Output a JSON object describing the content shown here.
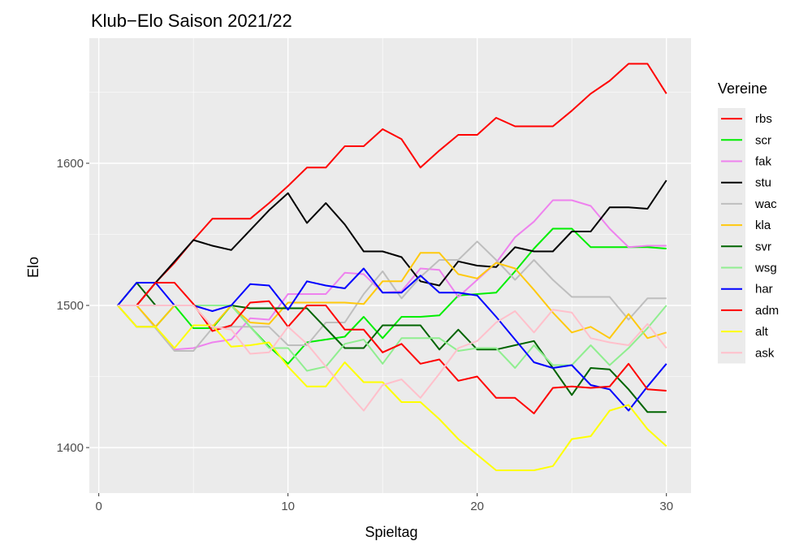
{
  "chart_data": {
    "type": "line",
    "title": "Klub−Elo Saison 2021/22",
    "xlabel": "Spieltag",
    "ylabel": "Elo",
    "xlim": [
      -0.5,
      31.3
    ],
    "ylim": [
      1368,
      1688
    ],
    "x_ticks": [
      0,
      10,
      20,
      30
    ],
    "x_tick_labels": [
      "0",
      "10",
      "20",
      "30"
    ],
    "y_ticks": [
      1400,
      1500,
      1600
    ],
    "y_tick_labels": [
      "1400",
      "1500",
      "1600"
    ],
    "grid": true,
    "legend_title": "Vereine",
    "legend_position": "right",
    "x": [
      1,
      2,
      3,
      4,
      5,
      6,
      7,
      8,
      9,
      10,
      11,
      12,
      13,
      14,
      15,
      16,
      17,
      18,
      19,
      20,
      21,
      22,
      23,
      24,
      25,
      26,
      27,
      28,
      29,
      30
    ],
    "series": [
      {
        "name": "rbs",
        "color": "#ff0000",
        "values": [
          1500,
          1500,
          1516,
          1530,
          1546,
          1561,
          1561,
          1561,
          1572,
          1584,
          1597,
          1597,
          1612,
          1612,
          1624,
          1617,
          1597,
          1609,
          1620,
          1620,
          1632,
          1626,
          1626,
          1626,
          1637,
          1649,
          1658,
          1670,
          1670,
          1649
        ]
      },
      {
        "name": "scr",
        "color": "#00ee00",
        "values": [
          1500,
          1485,
          1485,
          1500,
          1484,
          1484,
          1500,
          1485,
          1471,
          1459,
          1474,
          1476,
          1478,
          1492,
          1477,
          1492,
          1492,
          1493,
          1507,
          1508,
          1509,
          1524,
          1540,
          1554,
          1554,
          1541,
          1541,
          1541,
          1541,
          1540
        ]
      },
      {
        "name": "fak",
        "color": "#ee82ee",
        "values": [
          1500,
          1485,
          1485,
          1469,
          1470,
          1474,
          1476,
          1491,
          1490,
          1508,
          1508,
          1508,
          1523,
          1522,
          1509,
          1510,
          1526,
          1525,
          1506,
          1518,
          1530,
          1548,
          1559,
          1574,
          1574,
          1570,
          1554,
          1541,
          1542,
          1542
        ]
      },
      {
        "name": "stu",
        "color": "#000000",
        "values": [
          1500,
          1500,
          1516,
          1531,
          1546,
          1542,
          1539,
          1553,
          1567,
          1579,
          1558,
          1572,
          1557,
          1538,
          1538,
          1534,
          1517,
          1514,
          1531,
          1528,
          1527,
          1541,
          1538,
          1538,
          1552,
          1552,
          1569,
          1569,
          1568,
          1588
        ]
      },
      {
        "name": "wac",
        "color": "#bebebe",
        "values": [
          1500,
          1500,
          1484,
          1468,
          1468,
          1484,
          1485,
          1485,
          1485,
          1472,
          1472,
          1488,
          1488,
          1508,
          1524,
          1505,
          1520,
          1532,
          1532,
          1545,
          1532,
          1518,
          1532,
          1518,
          1506,
          1506,
          1506,
          1490,
          1505,
          1505
        ]
      },
      {
        "name": "kla",
        "color": "#ffc90e",
        "values": [
          1500,
          1500,
          1485,
          1500,
          1500,
          1485,
          1500,
          1488,
          1487,
          1502,
          1502,
          1502,
          1502,
          1501,
          1517,
          1517,
          1537,
          1537,
          1522,
          1519,
          1530,
          1526,
          1511,
          1495,
          1481,
          1485,
          1477,
          1494,
          1477,
          1481
        ]
      },
      {
        "name": "svr",
        "color": "#006400",
        "values": [
          1500,
          1516,
          1500,
          1500,
          1500,
          1500,
          1500,
          1498,
          1498,
          1498,
          1498,
          1484,
          1470,
          1470,
          1486,
          1486,
          1486,
          1469,
          1483,
          1469,
          1469,
          1472,
          1475,
          1456,
          1437,
          1456,
          1455,
          1441,
          1425,
          1425
        ]
      },
      {
        "name": "wsg",
        "color": "#90ee90",
        "values": [
          1500,
          1500,
          1500,
          1500,
          1500,
          1500,
          1500,
          1485,
          1470,
          1470,
          1454,
          1457,
          1473,
          1476,
          1459,
          1477,
          1477,
          1477,
          1468,
          1470,
          1470,
          1456,
          1472,
          1458,
          1458,
          1472,
          1458,
          1470,
          1484,
          1500
        ]
      },
      {
        "name": "har",
        "color": "#0000ff",
        "values": [
          1500,
          1516,
          1516,
          1500,
          1500,
          1496,
          1500,
          1515,
          1514,
          1497,
          1517,
          1514,
          1512,
          1526,
          1509,
          1509,
          1521,
          1509,
          1509,
          1507,
          1492,
          1476,
          1460,
          1456,
          1458,
          1444,
          1441,
          1426,
          1443,
          1459
        ]
      },
      {
        "name": "adm",
        "color": "#ff0000",
        "values": [
          1500,
          1500,
          1516,
          1516,
          1501,
          1482,
          1486,
          1502,
          1503,
          1485,
          1500,
          1500,
          1483,
          1483,
          1467,
          1473,
          1459,
          1462,
          1447,
          1450,
          1435,
          1435,
          1424,
          1442,
          1443,
          1442,
          1443,
          1459,
          1441,
          1440
        ]
      },
      {
        "name": "alt",
        "color": "#ffff00",
        "values": [
          1500,
          1485,
          1485,
          1470,
          1486,
          1486,
          1471,
          1472,
          1474,
          1457,
          1443,
          1443,
          1460,
          1446,
          1446,
          1432,
          1432,
          1420,
          1406,
          1395,
          1384,
          1384,
          1384,
          1387,
          1406,
          1408,
          1426,
          1430,
          1413,
          1401
        ]
      },
      {
        "name": "ask",
        "color": "#ffc0cb",
        "values": [
          1500,
          1500,
          1500,
          1500,
          1500,
          1485,
          1483,
          1466,
          1467,
          1485,
          1473,
          1457,
          1441,
          1426,
          1444,
          1448,
          1435,
          1452,
          1470,
          1475,
          1488,
          1496,
          1481,
          1497,
          1495,
          1477,
          1474,
          1472,
          1487,
          1470
        ]
      }
    ]
  }
}
